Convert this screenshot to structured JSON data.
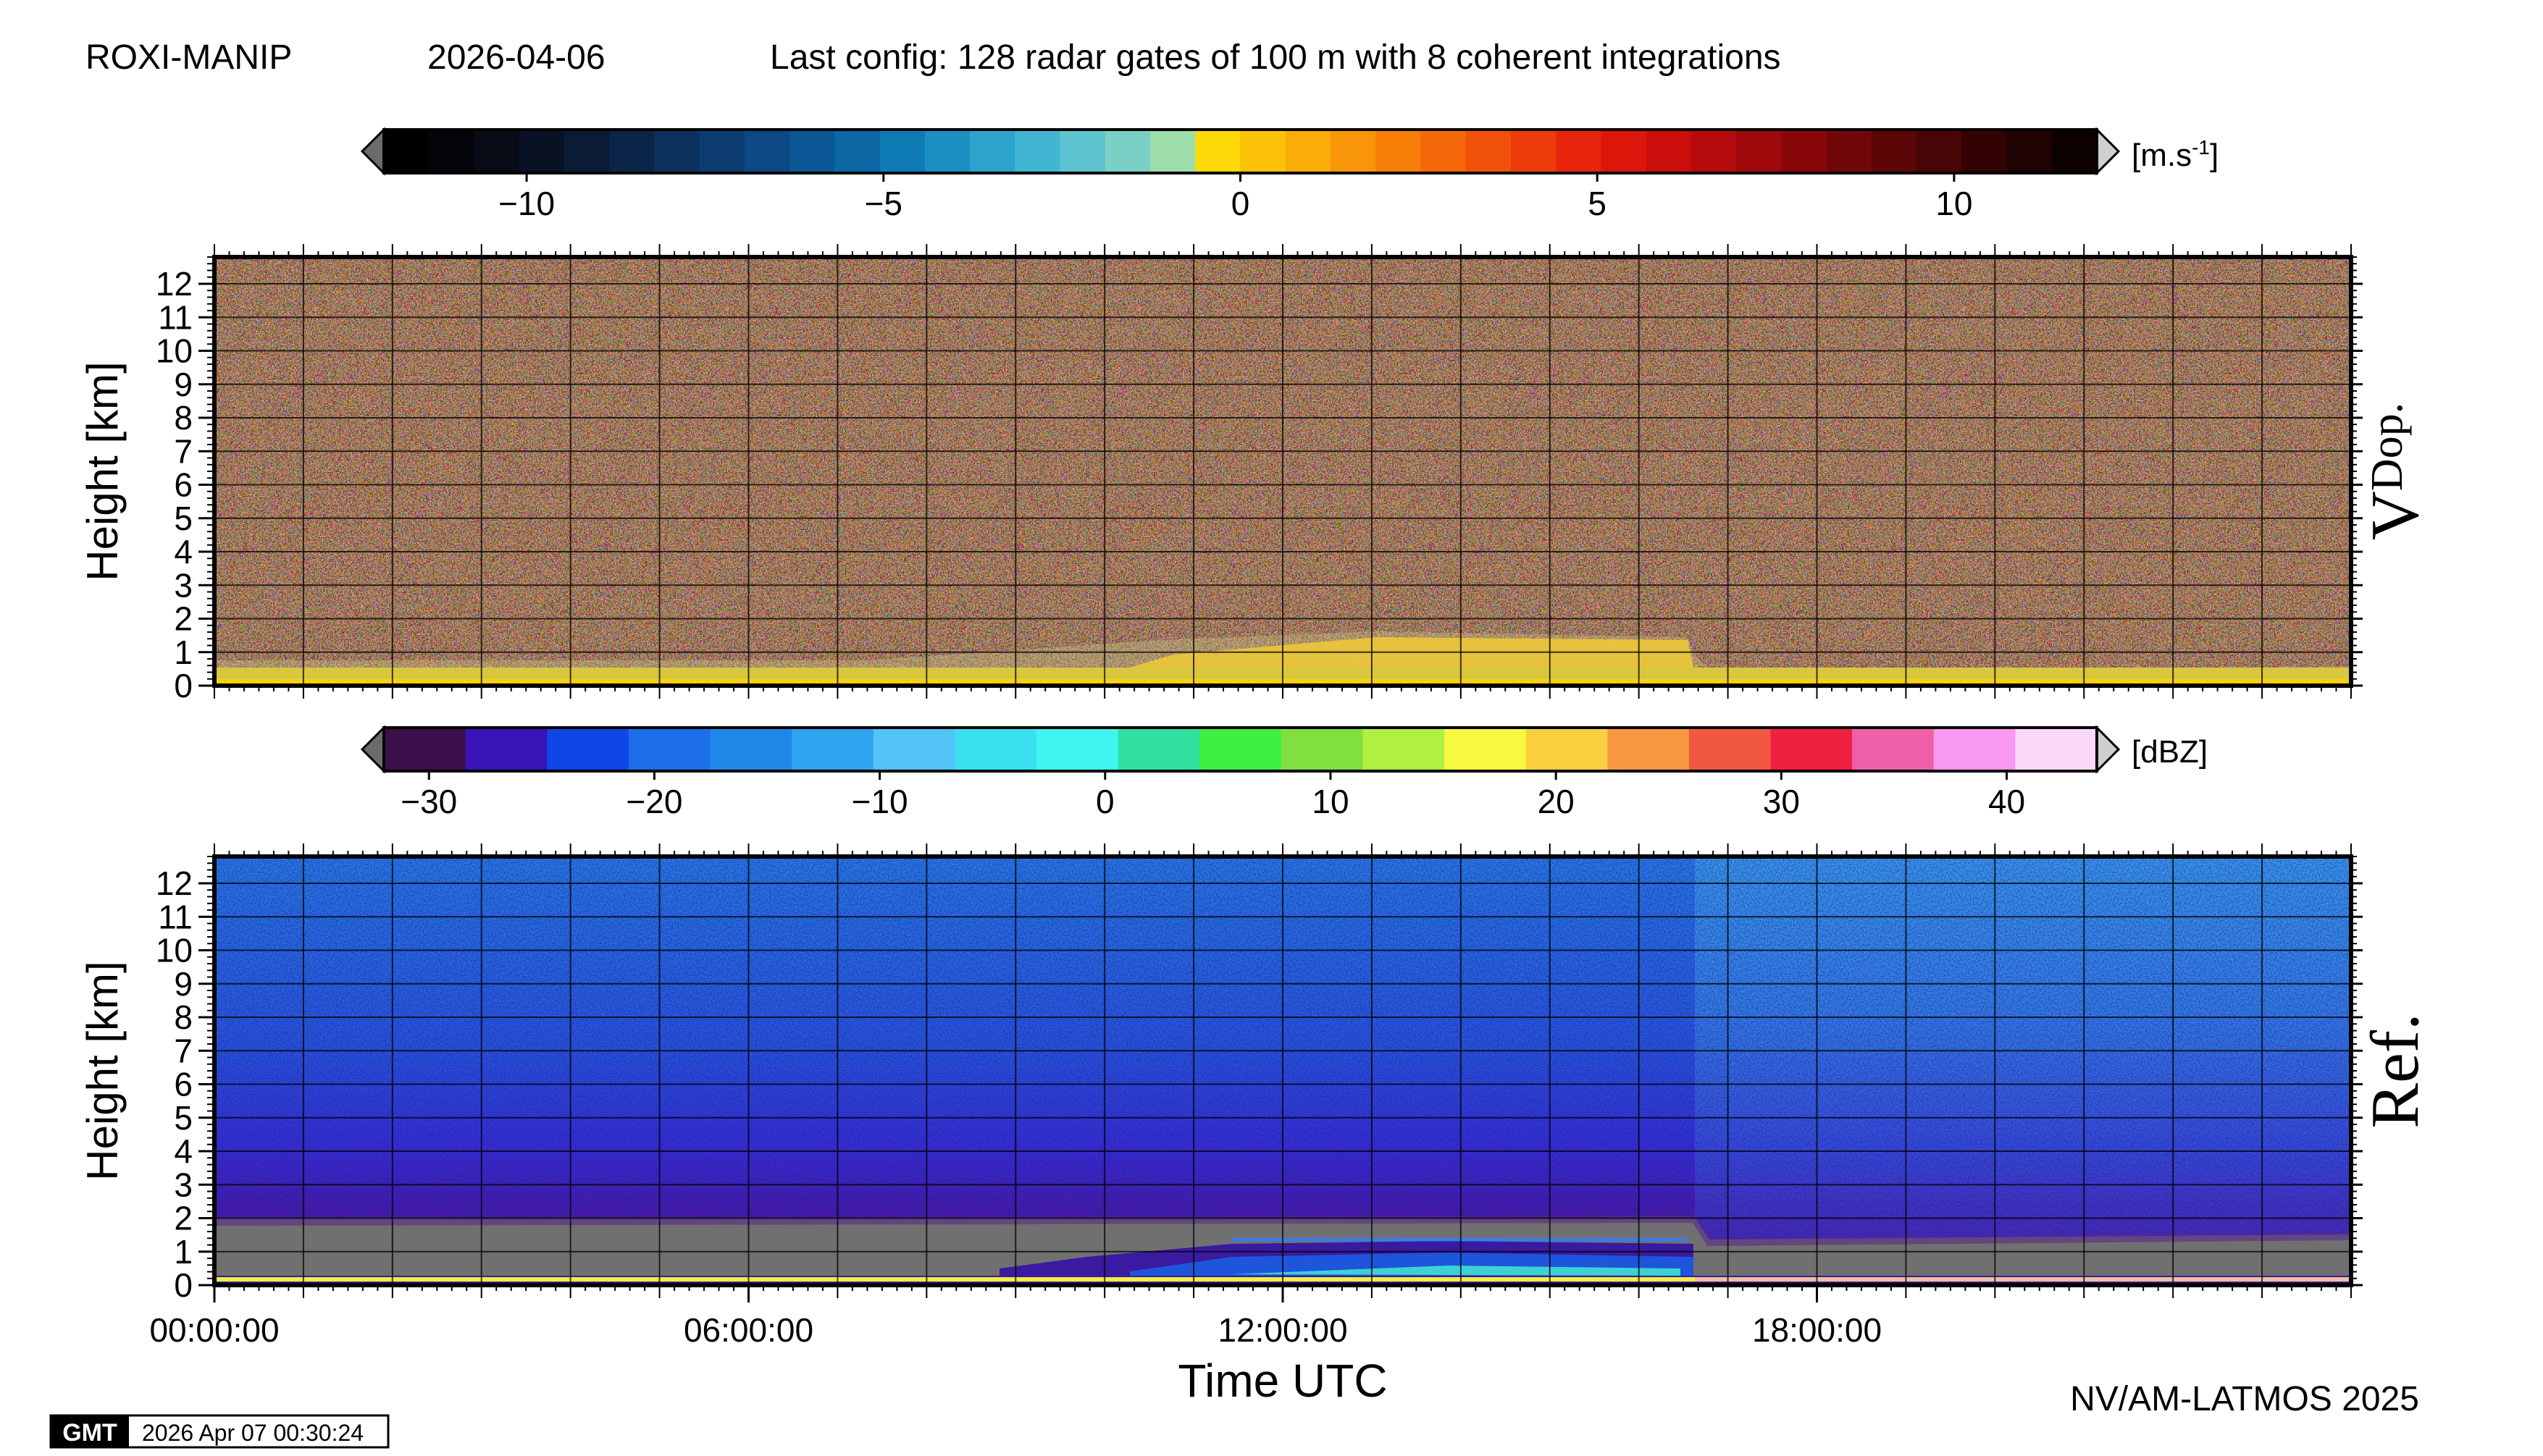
{
  "header": {
    "station": "ROXI-MANIP",
    "date": "2026-04-06",
    "config": "Last config: 128 radar gates of 100 m with 8 coherent integrations"
  },
  "footer": {
    "gmt_logo": "GMT",
    "timestamp": "2026 Apr 07 00:30:24",
    "credit": "NV/AM-LATMOS 2025"
  },
  "chart_data": [
    {
      "type": "heatmap",
      "panel_label": "V",
      "panel_label_sub": "Dop.",
      "xlabel": "",
      "ylabel": "Height [km]",
      "xlim": [
        0,
        24
      ],
      "ylim": [
        0,
        12.8
      ],
      "yticks": [
        "0",
        "1",
        "2",
        "3",
        "4",
        "5",
        "6",
        "7",
        "8",
        "9",
        "10",
        "11",
        "12"
      ],
      "xticks": [],
      "grid": true,
      "colorbar": {
        "unit_main": "[m.s",
        "unit_sup": "-1",
        "unit_end": "]",
        "range": [
          -12,
          12
        ],
        "ticks": [
          {
            "value": -10,
            "label": "−10"
          },
          {
            "value": -5,
            "label": "−5"
          },
          {
            "value": 0,
            "label": "0"
          },
          {
            "value": 5,
            "label": "5"
          },
          {
            "value": 10,
            "label": "10"
          }
        ],
        "colors": [
          "#000000",
          "#04050a",
          "#060b16",
          "#081224",
          "#0a1b35",
          "#0b2548",
          "#0c305c",
          "#0c3b70",
          "#0c4883",
          "#0b5795",
          "#0b68a5",
          "#0f7bb4",
          "#1a8fc2",
          "#2ba3cd",
          "#42b5d3",
          "#5ec4d0",
          "#7bd0c5",
          "#9ddeab",
          "#fcd806",
          "#fbc207",
          "#faac08",
          "#f99509",
          "#f77e09",
          "#f5680a",
          "#f2510b",
          "#ee3b0b",
          "#e8250c",
          "#dd160c",
          "#ca0e0c",
          "#b50b0c",
          "#9f090b",
          "#88080a",
          "#720709",
          "#5c0607",
          "#470505",
          "#330303",
          "#1f0202",
          "#0e0101"
        ]
      }
    },
    {
      "type": "heatmap",
      "panel_label": "Ref.",
      "xlabel": "Time UTC",
      "ylabel": "Height [km]",
      "xlim": [
        0,
        24
      ],
      "ylim": [
        0,
        12.8
      ],
      "yticks": [
        "0",
        "1",
        "2",
        "3",
        "4",
        "5",
        "6",
        "7",
        "8",
        "9",
        "10",
        "11",
        "12"
      ],
      "xticks": [
        {
          "value": 0,
          "label": "00:00:00"
        },
        {
          "value": 6,
          "label": "06:00:00"
        },
        {
          "value": 12,
          "label": "12:00:00"
        },
        {
          "value": 18,
          "label": "18:00:00"
        }
      ],
      "grid": true,
      "colorbar": {
        "unit": "[dBZ]",
        "range": [
          -32,
          44
        ],
        "ticks": [
          {
            "value": -30,
            "label": "−30"
          },
          {
            "value": -20,
            "label": "−20"
          },
          {
            "value": -10,
            "label": "−10"
          },
          {
            "value": 0,
            "label": "0"
          },
          {
            "value": 10,
            "label": "10"
          },
          {
            "value": 20,
            "label": "20"
          },
          {
            "value": 30,
            "label": "30"
          },
          {
            "value": 40,
            "label": "40"
          }
        ],
        "colors": [
          "#3b0f4a",
          "#3a14b8",
          "#1046e6",
          "#1c6ee8",
          "#1f87e8",
          "#2fa3ee",
          "#52c4f5",
          "#3ae0f0",
          "#40f5f0",
          "#30e0a0",
          "#40f040",
          "#80e040",
          "#b0f040",
          "#f8f840",
          "#f8d040",
          "#f89840",
          "#f05840",
          "#f02040",
          "#f060a8",
          "#f898f0",
          "#fbd8f8"
        ]
      }
    }
  ]
}
